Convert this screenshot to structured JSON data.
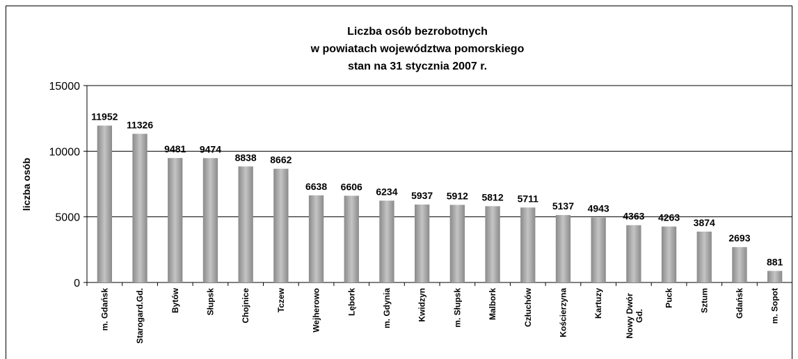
{
  "chart_data": {
    "type": "bar",
    "title": [
      "Liczba osób bezrobotnych",
      "w powiatach województwa pomorskiego",
      "stan na 31 stycznia 2007 r."
    ],
    "y_label": "liczba osób",
    "categories": [
      "m. Gdańsk",
      "Starogard.Gd.",
      "Bytów",
      "Słupsk",
      "Chojnice",
      "Tczew",
      "Wejherowo",
      "Lębork",
      "m. Gdynia",
      "Kwidzyn",
      "m. Słupsk",
      "Malbork",
      "Człuchów",
      "Kościerzyna",
      "Kartuzy",
      "Nowy Dwór Gd.",
      "Puck",
      "Sztum",
      "Gdańsk",
      "m. Sopot"
    ],
    "values": [
      11952,
      11326,
      9481,
      9474,
      8838,
      8662,
      6638,
      6606,
      6234,
      5937,
      5912,
      5812,
      5711,
      5137,
      4943,
      4363,
      4263,
      3874,
      2693,
      881
    ],
    "color": "#a0a0a0",
    "ylim": [
      0,
      15000
    ],
    "yticks": [
      0,
      5000,
      10000,
      15000
    ],
    "grid": true
  }
}
